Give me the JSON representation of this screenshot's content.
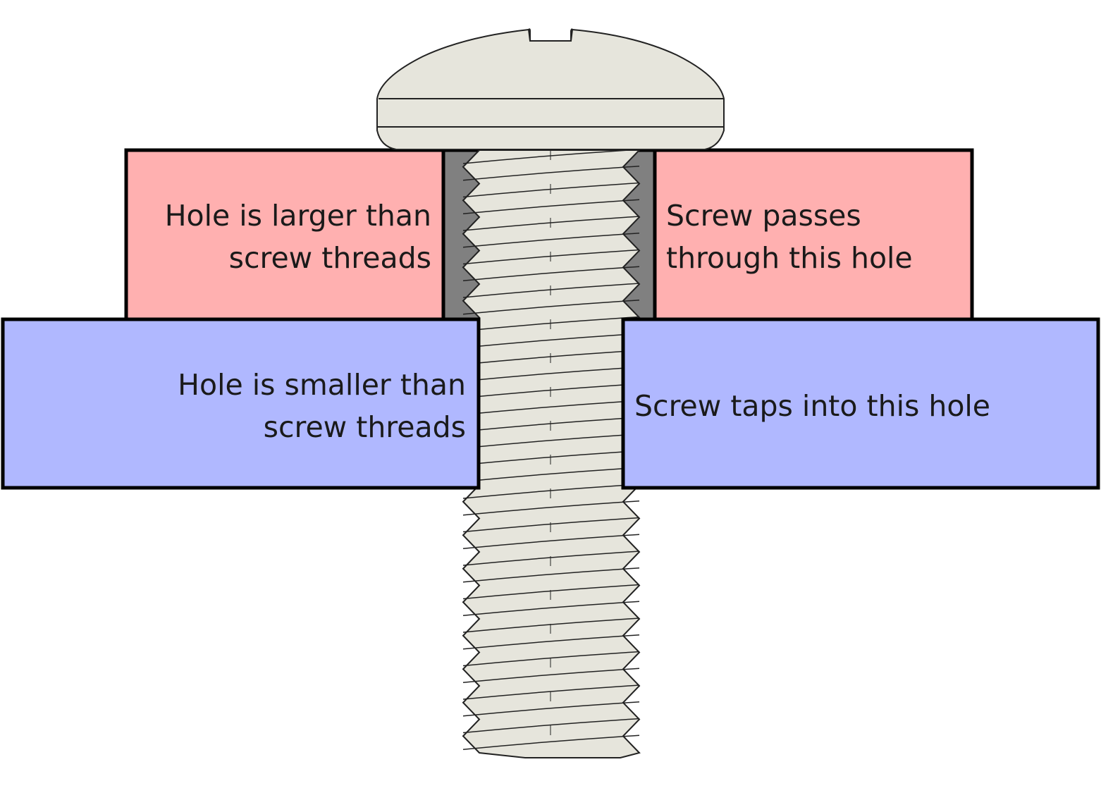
{
  "upper_plate": {
    "left_text": [
      "Hole is larger than",
      "screw threads"
    ],
    "right_text": [
      "Screw passes",
      "through this hole"
    ],
    "fill_color": "#ffb0b0",
    "hole_color": "#808080"
  },
  "lower_plate": {
    "left_text": [
      "Hole is smaller than",
      "screw threads"
    ],
    "right_text": "Screw taps into this hole",
    "fill_color": "#b0b8ff"
  },
  "screw": {
    "type": "pan head slotted machine screw",
    "fill_color": "#e6e5dc",
    "outline_color": "#222222"
  }
}
